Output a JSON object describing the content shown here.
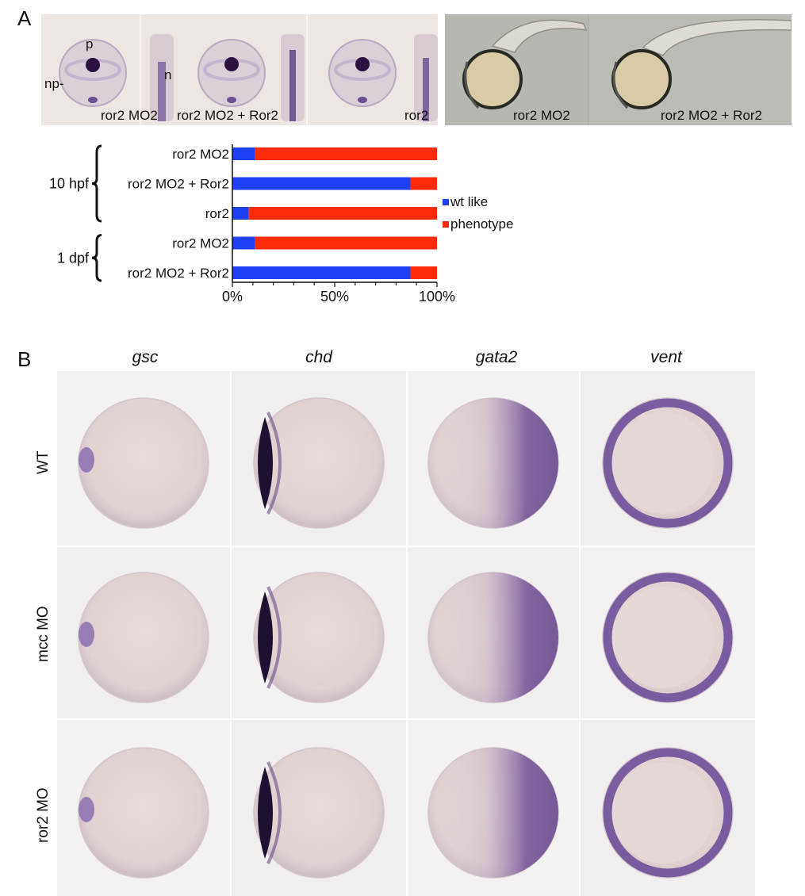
{
  "panel_a": {
    "letter": "A",
    "photo_labels": {
      "p": "p",
      "np": "np-",
      "n": "n",
      "e1": "ror2 MO2",
      "e2": "ror2 MO2 + Ror2",
      "e3": "ror2",
      "l1": "ror2 MO2",
      "l2": "ror2 MO2 + Ror2"
    },
    "groups": [
      {
        "label": "10 hpf"
      },
      {
        "label": "1 dpf"
      }
    ]
  },
  "chart_data": {
    "type": "bar",
    "orientation": "horizontal",
    "stacked": true,
    "categories": [
      "ror2 MO2",
      "ror2 MO2 + Ror2",
      "ror2",
      "ror2 MO2",
      "ror2 MO2 + Ror2"
    ],
    "series": [
      {
        "name": "wt like",
        "color": "#1f3ff2",
        "values": [
          11,
          87,
          8,
          11,
          87
        ]
      },
      {
        "name": "phenotype",
        "color": "#ff2a0a",
        "values": [
          89,
          13,
          92,
          89,
          13
        ]
      }
    ],
    "xticks": [
      "0%",
      "50%",
      "100%"
    ],
    "xlim": [
      0,
      100
    ],
    "legend": "right"
  },
  "panel_b": {
    "letter": "B",
    "columns": [
      "gsc",
      "chd",
      "gata2",
      "vent"
    ],
    "rows": [
      "WT",
      "mcc MO",
      "ror2 MO"
    ]
  }
}
